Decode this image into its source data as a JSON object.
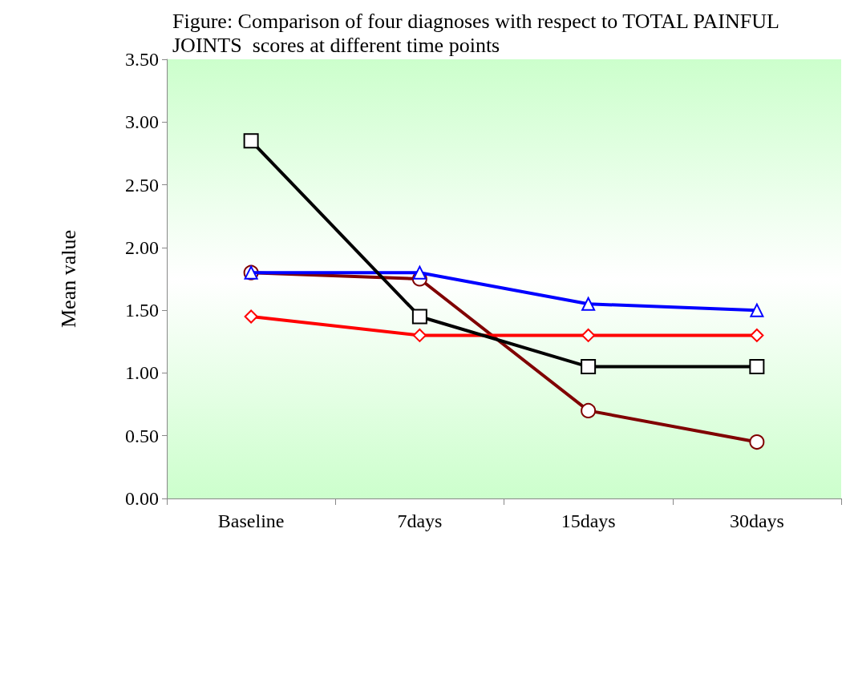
{
  "chart_data": {
    "type": "line",
    "title": "Figure: Comparison of four diagnoses with respect to TOTAL PAINFUL JOINTS  scores at different time points",
    "ylabel": "Mean value",
    "categories": [
      "Baseline",
      "7days",
      "15days",
      "30days"
    ],
    "series": [
      {
        "color": "#000000",
        "marker": "square",
        "values": [
          2.85,
          1.45,
          1.05,
          1.05
        ]
      },
      {
        "color": "#0000ff",
        "marker": "triangle",
        "values": [
          1.8,
          1.8,
          1.55,
          1.5
        ]
      },
      {
        "color": "#ff0000",
        "marker": "diamond",
        "values": [
          1.45,
          1.3,
          1.3,
          1.3
        ]
      },
      {
        "color": "#800000",
        "marker": "circle",
        "values": [
          1.8,
          1.75,
          0.7,
          0.45
        ]
      }
    ],
    "ylim": [
      0,
      3.5
    ],
    "yticks": [
      {
        "value": 0,
        "label": "0.00"
      },
      {
        "value": 0.5,
        "label": "0.50"
      },
      {
        "value": 1,
        "label": "1.00"
      },
      {
        "value": 1.5,
        "label": "1.50"
      },
      {
        "value": 2,
        "label": "2.00"
      },
      {
        "value": 2.5,
        "label": "2.50"
      },
      {
        "value": 3,
        "label": "3.00"
      },
      {
        "value": 3.5,
        "label": "3.50"
      }
    ],
    "grid": false,
    "line_style": "solid"
  }
}
